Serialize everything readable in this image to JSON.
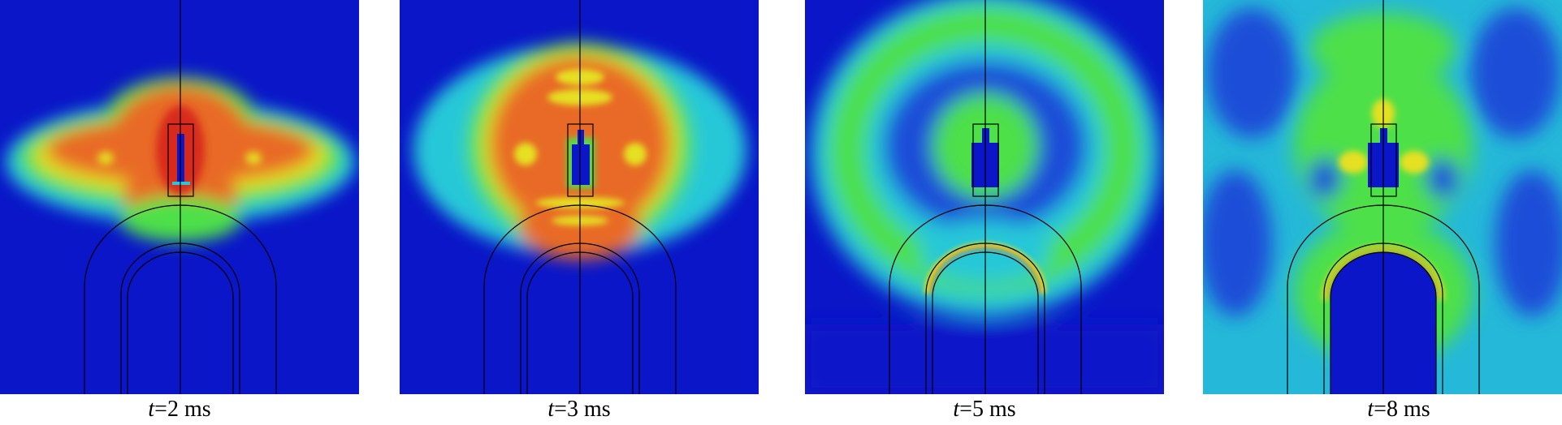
{
  "figure": {
    "colors": {
      "background_low": "#0a16c8",
      "mid_cyan": "#25c8d8",
      "mid_green": "#4de04a",
      "high_yellow": "#e6e020",
      "high_orange": "#e86a28",
      "peak_red": "#d82a1a",
      "outline": "#000000"
    },
    "panels": [
      {
        "id": "t2",
        "time_var": "t",
        "time_rest": "=2 ms",
        "state": "blast-core-orange"
      },
      {
        "id": "t3",
        "time_var": "t",
        "time_rest": "=3 ms",
        "state": "expanding-orange-disc"
      },
      {
        "id": "t5",
        "time_var": "t",
        "time_rest": "=5 ms",
        "state": "green-ring-wave"
      },
      {
        "id": "t8",
        "time_var": "t",
        "time_rest": "=8 ms",
        "state": "diffuse-green-field"
      }
    ]
  }
}
